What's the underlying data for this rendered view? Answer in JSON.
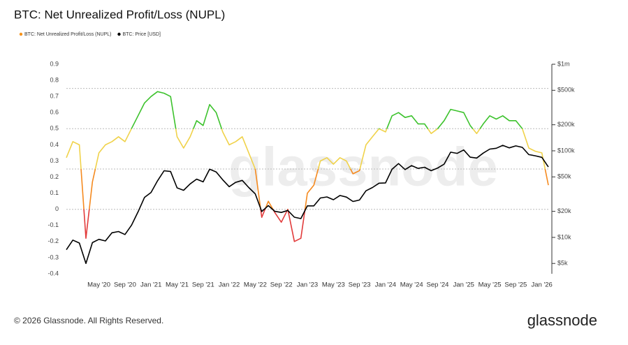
{
  "chart_data": {
    "type": "line",
    "title": "BTC: Net Unrealized Profit/Loss (NUPL)",
    "watermark": "glassnode",
    "footer": "© 2026 Glassnode. All Rights Reserved.",
    "logo": "glassnode",
    "x": [
      "2019-12",
      "2020-01",
      "2020-02",
      "2020-03",
      "2020-04",
      "2020-05",
      "2020-06",
      "2020-07",
      "2020-08",
      "2020-09",
      "2020-10",
      "2020-11",
      "2020-12",
      "2021-01",
      "2021-02",
      "2021-03",
      "2021-04",
      "2021-05",
      "2021-06",
      "2021-07",
      "2021-08",
      "2021-09",
      "2021-10",
      "2021-11",
      "2021-12",
      "2022-01",
      "2022-02",
      "2022-03",
      "2022-04",
      "2022-05",
      "2022-06",
      "2022-07",
      "2022-08",
      "2022-09",
      "2022-10",
      "2022-11",
      "2022-12",
      "2023-01",
      "2023-02",
      "2023-03",
      "2023-04",
      "2023-05",
      "2023-06",
      "2023-07",
      "2023-08",
      "2023-09",
      "2023-10",
      "2023-11",
      "2023-12",
      "2024-01",
      "2024-02",
      "2024-03",
      "2024-04",
      "2024-05",
      "2024-06",
      "2024-07",
      "2024-08",
      "2024-09",
      "2024-10",
      "2024-11",
      "2024-12",
      "2025-01",
      "2025-02",
      "2025-03",
      "2025-04",
      "2025-05",
      "2025-06",
      "2025-07",
      "2025-08",
      "2025-09",
      "2025-10",
      "2025-11",
      "2025-12",
      "2026-01",
      "2026-02"
    ],
    "xlim": [
      "2019-12",
      "2026-02"
    ],
    "xticks": [
      {
        "value": "2020-05",
        "label": "May '20"
      },
      {
        "value": "2020-09",
        "label": "Sep '20"
      },
      {
        "value": "2021-01",
        "label": "Jan '21"
      },
      {
        "value": "2021-05",
        "label": "May '21"
      },
      {
        "value": "2021-09",
        "label": "Sep '21"
      },
      {
        "value": "2022-01",
        "label": "Jan '22"
      },
      {
        "value": "2022-05",
        "label": "May '22"
      },
      {
        "value": "2022-09",
        "label": "Sep '22"
      },
      {
        "value": "2023-01",
        "label": "Jan '23"
      },
      {
        "value": "2023-05",
        "label": "May '23"
      },
      {
        "value": "2023-09",
        "label": "Sep '23"
      },
      {
        "value": "2024-01",
        "label": "Jan '24"
      },
      {
        "value": "2024-05",
        "label": "May '24"
      },
      {
        "value": "2024-09",
        "label": "Sep '24"
      },
      {
        "value": "2025-01",
        "label": "Jan '25"
      },
      {
        "value": "2025-05",
        "label": "May '25"
      },
      {
        "value": "2025-09",
        "label": "Sep '25"
      },
      {
        "value": "2026-01",
        "label": "Jan '26"
      }
    ],
    "ylim": [
      -0.4,
      0.9
    ],
    "yticks": [
      0.9,
      0.8,
      0.7,
      0.6,
      0.5,
      0.4,
      0.3,
      0.2,
      0.1,
      0,
      -0.1,
      -0.2,
      -0.3,
      -0.4
    ],
    "y2lim": [
      3800,
      1000000
    ],
    "y2_log": true,
    "y2ticks": [
      {
        "value": 1000000,
        "label": "$1m"
      },
      {
        "value": 500000,
        "label": "$500k"
      },
      {
        "value": 200000,
        "label": "$200k"
      },
      {
        "value": 100000,
        "label": "$100k"
      },
      {
        "value": 50000,
        "label": "$50k"
      },
      {
        "value": 20000,
        "label": "$20k"
      },
      {
        "value": 10000,
        "label": "$10k"
      },
      {
        "value": 5000,
        "label": "$5k"
      }
    ],
    "color_thresholds": [
      0,
      0.25,
      0.5,
      0.75
    ],
    "zone_colors": [
      "#e23b3b",
      "#f58a1f",
      "#f0d24a",
      "#3cc22c",
      "#2f7de1"
    ],
    "series": [
      {
        "name": "BTC: Net Unrealized Profit/Loss (NUPL)",
        "color": "#f7931a",
        "values": [
          0.32,
          0.42,
          0.4,
          -0.18,
          0.17,
          0.35,
          0.4,
          0.42,
          0.45,
          0.42,
          0.5,
          0.58,
          0.66,
          0.7,
          0.73,
          0.72,
          0.7,
          0.45,
          0.38,
          0.45,
          0.55,
          0.52,
          0.65,
          0.6,
          0.48,
          0.4,
          0.42,
          0.45,
          0.35,
          0.25,
          -0.05,
          0.05,
          -0.02,
          -0.08,
          0.0,
          -0.2,
          -0.18,
          0.1,
          0.15,
          0.3,
          0.32,
          0.28,
          0.32,
          0.3,
          0.22,
          0.24,
          0.4,
          0.45,
          0.5,
          0.48,
          0.58,
          0.6,
          0.57,
          0.58,
          0.53,
          0.53,
          0.47,
          0.5,
          0.55,
          0.62,
          0.61,
          0.6,
          0.52,
          0.47,
          0.53,
          0.58,
          0.56,
          0.58,
          0.55,
          0.55,
          0.5,
          0.38,
          0.36,
          0.35,
          0.15
        ]
      },
      {
        "name": "BTC: Price [USD]",
        "color": "#000000",
        "axis": "y2",
        "values": [
          7200,
          9300,
          8600,
          5000,
          8700,
          9500,
          9100,
          11300,
          11700,
          10800,
          13800,
          19700,
          29000,
          33000,
          45000,
          58800,
          57700,
          37300,
          35000,
          41500,
          47100,
          43800,
          61300,
          57000,
          46300,
          38500,
          43200,
          45500,
          37700,
          31800,
          19900,
          23300,
          20000,
          19400,
          20500,
          17100,
          16500,
          23100,
          23100,
          28500,
          29300,
          27200,
          30500,
          29200,
          26000,
          27000,
          34500,
          37700,
          42300,
          42600,
          61200,
          71300,
          60700,
          67500,
          62700,
          64600,
          59000,
          63300,
          70200,
          96400,
          93400,
          102400,
          84300,
          82500,
          94200,
          104600,
          107100,
          115700,
          108200,
          114000,
          109600,
          90400,
          87500,
          84000,
          65000
        ]
      }
    ]
  }
}
